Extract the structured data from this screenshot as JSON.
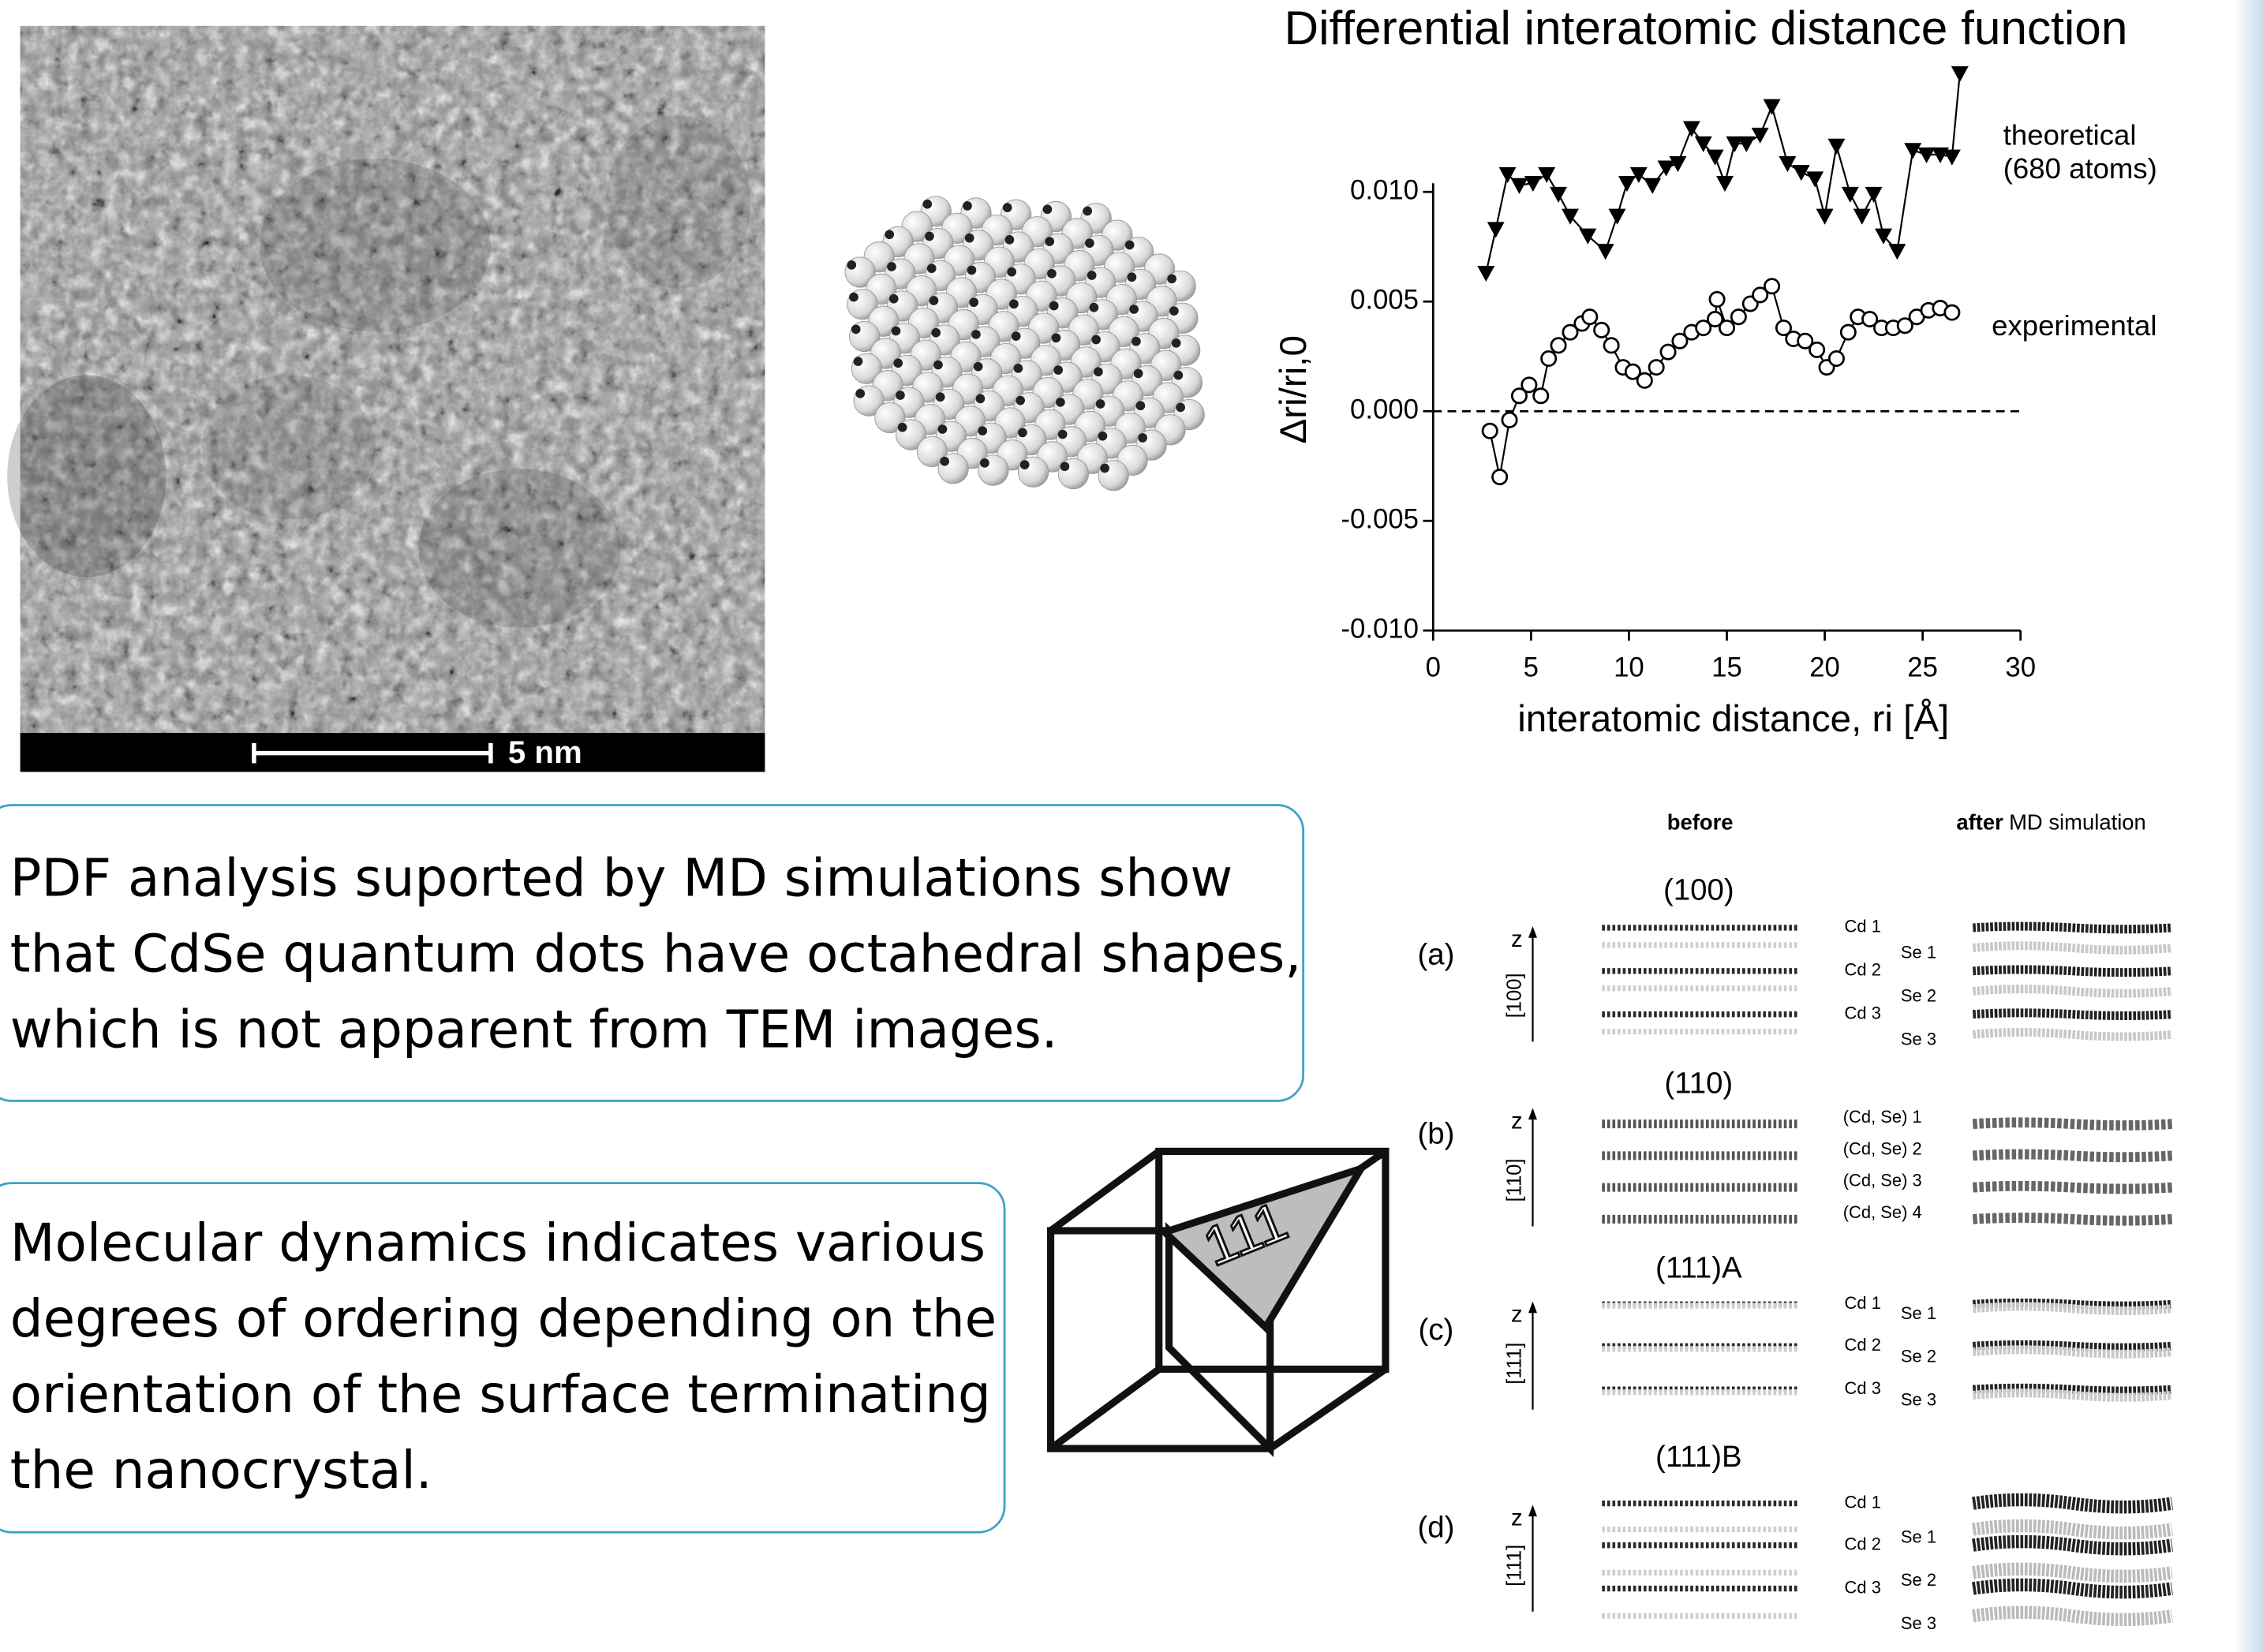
{
  "tem_image": {
    "scale_bar_label": "5 nm"
  },
  "chart_data": {
    "type": "line",
    "title": "Differential  interatomic distance function",
    "xlabel": "interatomic distance, ri [Å]",
    "ylabel": "Δri/ri,0",
    "xlim": [
      0,
      30
    ],
    "xticks": [
      0,
      5,
      10,
      15,
      20,
      25,
      30
    ],
    "ylim": [
      -0.01,
      0.01
    ],
    "yticks": [
      {
        "value": 0.01,
        "label": "0.010"
      },
      {
        "value": 0.005,
        "label": "0.005"
      },
      {
        "value": 0,
        "label": "0.000"
      },
      {
        "value": -0.005,
        "label": "-0.005"
      },
      {
        "value": -0.01,
        "label": "-0.010"
      }
    ],
    "hline": 0,
    "series": [
      {
        "name": "theoretical\n(680 atoms)",
        "color": "#000000",
        "marker": "triangle-down",
        "x": [
          2.7,
          3.2,
          3.8,
          4.4,
          5.1,
          5.8,
          6.4,
          7.0,
          7.9,
          8.8,
          9.4,
          9.9,
          10.5,
          11.2,
          11.9,
          12.5,
          13.2,
          13.8,
          14.4,
          14.9,
          15.4,
          16.0,
          16.7,
          17.3,
          18.1,
          18.8,
          19.5,
          20.0,
          20.6,
          21.3,
          21.9,
          22.5,
          23.0,
          23.7,
          24.5,
          25.2,
          25.9,
          26.5,
          26.9
        ],
        "values": [
          0.0063,
          0.0083,
          0.0108,
          0.0103,
          0.0104,
          0.0108,
          0.0099,
          0.0089,
          0.008,
          0.0073,
          0.0089,
          0.0104,
          0.0108,
          0.0103,
          0.0111,
          0.0113,
          0.0129,
          0.0122,
          0.0116,
          0.0104,
          0.0122,
          0.0122,
          0.0126,
          0.0139,
          0.0113,
          0.0109,
          0.0106,
          0.0089,
          0.0121,
          0.0099,
          0.0089,
          0.0099,
          0.008,
          0.0073,
          0.0119,
          0.0117,
          0.0117,
          0.0116,
          0.0154
        ]
      },
      {
        "name": "experimental",
        "color": "#000000",
        "marker": "circle",
        "x": [
          2.9,
          3.4,
          3.9,
          4.4,
          4.9,
          5.5,
          5.9,
          6.4,
          7.0,
          7.6,
          8.0,
          8.6,
          9.1,
          9.7,
          10.2,
          10.8,
          11.4,
          12.0,
          12.6,
          13.2,
          13.8,
          14.4,
          14.5,
          15.0,
          15.6,
          16.2,
          16.7,
          17.3,
          17.9,
          18.4,
          19.0,
          19.6,
          20.1,
          20.6,
          21.2,
          21.7,
          22.3,
          22.9,
          23.5,
          24.1,
          24.7,
          25.3,
          25.9,
          26.5
        ],
        "values": [
          -0.0009,
          -0.003,
          -0.0004,
          0.0007,
          0.0012,
          0.0007,
          0.0024,
          0.003,
          0.0036,
          0.004,
          0.0043,
          0.0037,
          0.003,
          0.002,
          0.0018,
          0.0014,
          0.002,
          0.0027,
          0.0032,
          0.0036,
          0.0038,
          0.0042,
          0.0051,
          0.0038,
          0.0043,
          0.0049,
          0.0053,
          0.0057,
          0.0038,
          0.0033,
          0.0032,
          0.0028,
          0.002,
          0.0024,
          0.0036,
          0.0043,
          0.0042,
          0.0038,
          0.0038,
          0.0039,
          0.0043,
          0.0046,
          0.0047,
          0.0045
        ]
      }
    ]
  },
  "text_boxes": [
    {
      "lines": [
        "PDF analysis suported by MD simulations show",
        "that CdSe quantum dots have octahedral shapes,",
        "which is not apparent from TEM images."
      ]
    },
    {
      "lines": [
        "Molecular dynamics indicates various",
        "degrees of ordering depending on the",
        "orientation of the surface terminating",
        "the nanocrystal."
      ]
    }
  ],
  "cube_label": "111",
  "md_figure": {
    "header_before": "before",
    "header_after_bold": "after",
    "header_after_rest": "MD simulation",
    "panels": [
      {
        "label": "(a)",
        "plane": "(100)",
        "z": "z",
        "axis": "[100]",
        "layers": [
          "Cd 1",
          "Se 1",
          "Cd 2",
          "Se 2",
          "Cd 3",
          "Se 3"
        ]
      },
      {
        "label": "(b)",
        "plane": "(110)",
        "z": "z",
        "axis": "[110]",
        "layers": [
          "(Cd, Se) 1",
          "(Cd, Se) 2",
          "(Cd, Se) 3",
          "(Cd, Se) 4"
        ]
      },
      {
        "label": "(c)",
        "plane": "(111)A",
        "z": "z",
        "axis": "[111]",
        "layers": [
          "Cd 1",
          "Se 1",
          "Cd 2",
          "Se 2",
          "Cd 3",
          "Se 3"
        ]
      },
      {
        "label": "(d)",
        "plane": "(111)B",
        "z": "z",
        "axis": "[111]",
        "layers": [
          "Cd 1",
          "Se 1",
          "Cd 2",
          "Se 2",
          "Cd 3",
          "Se 3"
        ]
      }
    ]
  }
}
